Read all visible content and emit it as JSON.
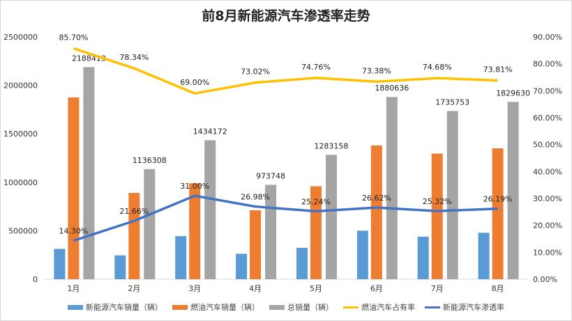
{
  "chart_data": {
    "type": "bar",
    "title": "前8月新能源汽车渗透率走势",
    "categories": [
      "1月",
      "2月",
      "3月",
      "4月",
      "5月",
      "6月",
      "7月",
      "8月"
    ],
    "y_left": {
      "range": [
        0,
        2500000
      ],
      "ticks": [
        "0",
        "500000",
        "1000000",
        "1500000",
        "2000000",
        "2500000"
      ]
    },
    "y_right": {
      "range": [
        0,
        90
      ],
      "ticks": [
        "0.00%",
        "10.00%",
        "20.00%",
        "30.00%",
        "40.00%",
        "50.00%",
        "60.00%",
        "70.00%",
        "80.00%",
        "90.00%"
      ]
    },
    "grid": false,
    "legend_position": "bottom",
    "series": [
      {
        "name": "新能源汽车销量（辆）",
        "type": "bar",
        "axis": "left",
        "color": "#5B9BD5",
        "values": [
          312943,
          246124,
          444593,
          262717,
          323869,
          500625,
          439493,
          479180
        ]
      },
      {
        "name": "燃油汽车销量（辆）",
        "type": "bar",
        "axis": "left",
        "color": "#ED7D31",
        "values": [
          1875470,
          890184,
          989579,
          711031,
          959289,
          1380011,
          1296260,
          1350450
        ]
      },
      {
        "name": "总销量（辆）",
        "type": "bar",
        "axis": "left",
        "color": "#A5A5A5",
        "values": [
          2188413,
          1136308,
          1434172,
          973748,
          1283158,
          1880636,
          1735753,
          1829630
        ],
        "labels": [
          "2188413",
          "1136308",
          "1434172",
          "973748",
          "1283158",
          "1880636",
          "1735753",
          "1829630"
        ]
      },
      {
        "name": "燃油汽车占有率",
        "type": "line",
        "axis": "right",
        "color": "#FFC000",
        "values": [
          85.7,
          78.34,
          69.0,
          73.02,
          74.76,
          73.38,
          74.68,
          73.81
        ],
        "labels": [
          "85.70%",
          "78.34%",
          "69.00%",
          "73.02%",
          "74.76%",
          "73.38%",
          "74.68%",
          "73.81%"
        ]
      },
      {
        "name": "新能源汽车渗透率",
        "type": "line",
        "axis": "right",
        "color": "#4472C4",
        "values": [
          14.3,
          21.66,
          31.0,
          26.98,
          25.24,
          26.62,
          25.32,
          26.19
        ],
        "labels": [
          "14.30%",
          "21.66%",
          "31.00%",
          "26.98%",
          "25.24%",
          "26.62%",
          "25.32%",
          "26.19%"
        ]
      }
    ]
  }
}
